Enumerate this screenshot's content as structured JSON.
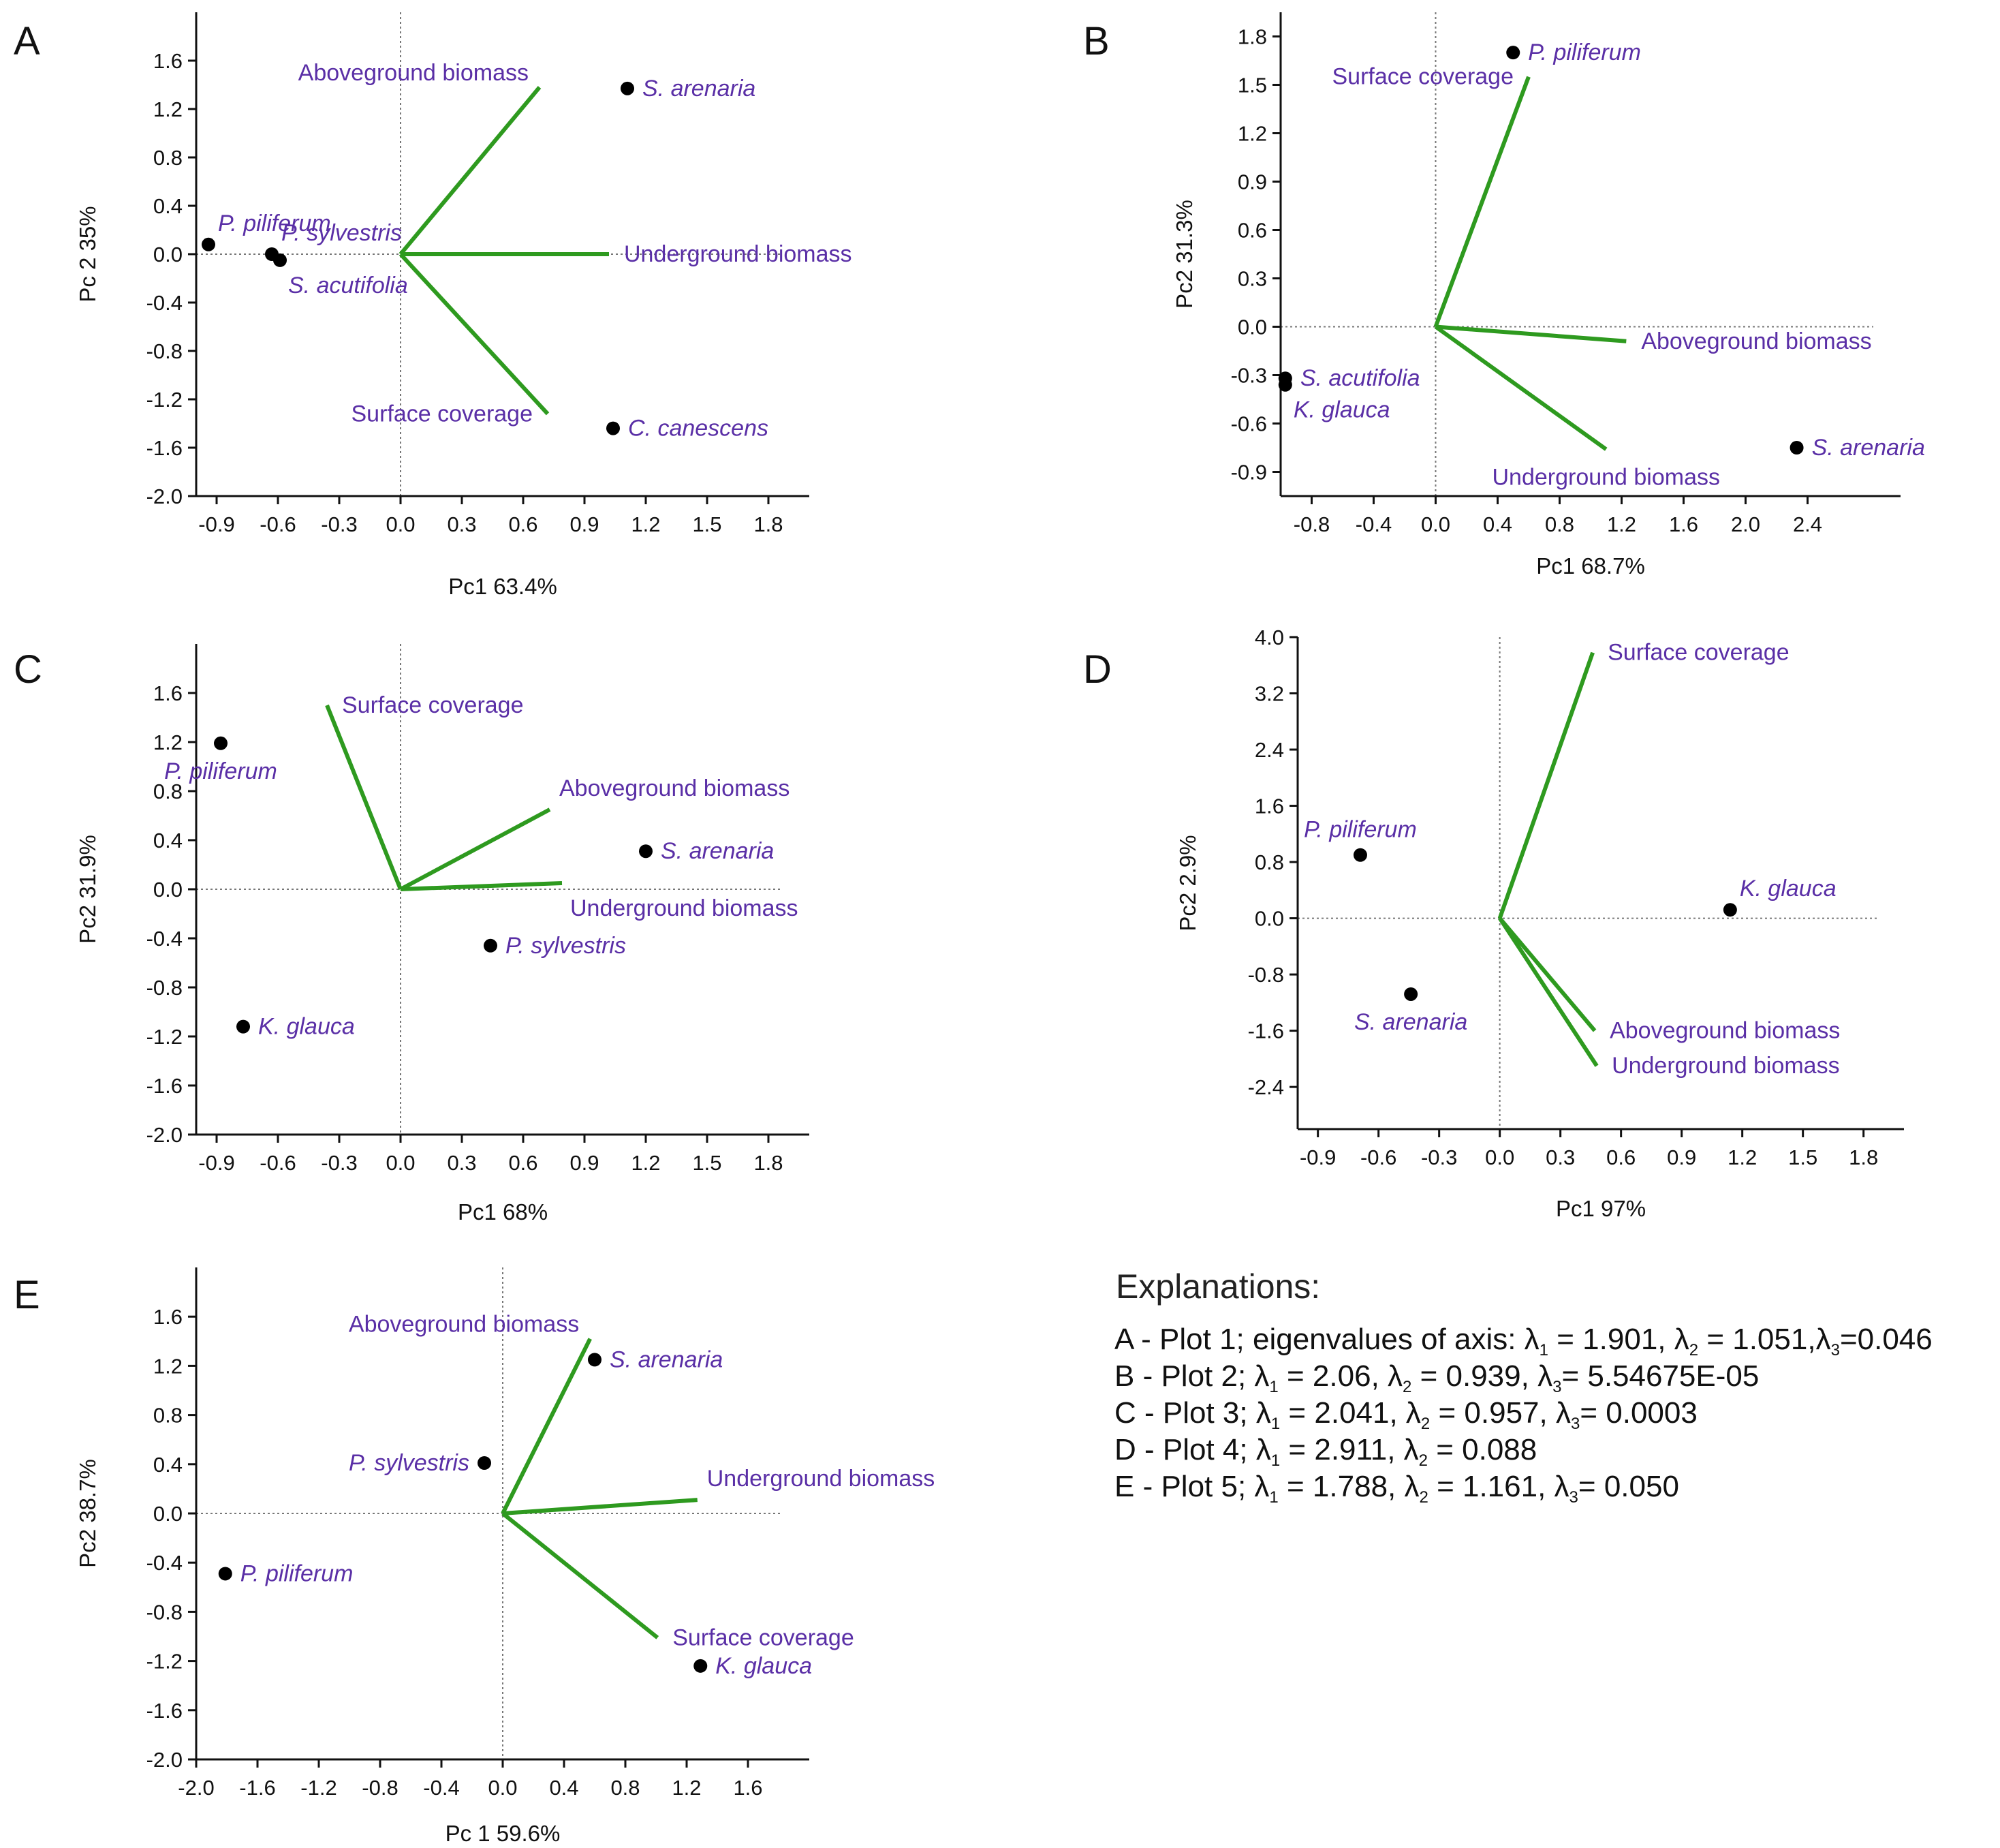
{
  "colors": {
    "vector": "#2e9a1f",
    "label": "#5a2fa6",
    "point": "#000000",
    "axis": "#111111",
    "zero_line": "#777777"
  },
  "chart_data": [
    {
      "panel": "A",
      "type": "scatter",
      "xlabel": "Pc1 63.4%",
      "ylabel": "Pc 2 35%",
      "xlim": [
        -1.0,
        2.0
      ],
      "ylim": [
        -2.0,
        2.0
      ],
      "xticks": [
        -0.9,
        -0.6,
        -0.3,
        0.0,
        0.3,
        0.6,
        0.9,
        1.2,
        1.5,
        1.8
      ],
      "xtick_labels": [
        "-0.9",
        "-0.6",
        "-0.3",
        "0.0",
        "0.3",
        "0.6",
        "0.9",
        "1.2",
        "1.5",
        "1.8"
      ],
      "yticks": [
        -2.0,
        -1.6,
        -1.2,
        -0.8,
        -0.4,
        0.0,
        0.4,
        0.8,
        1.2,
        1.6
      ],
      "ytick_labels": [
        "-2.0",
        "-1.6",
        "-1.2",
        "-0.8",
        "-0.4",
        "0.0",
        "0.4",
        "0.8",
        "1.2",
        "1.6"
      ],
      "points": [
        {
          "name": "S. arenaria",
          "x": 1.11,
          "y": 1.37,
          "label_pos": "right"
        },
        {
          "name": "P. piliferum",
          "x": -0.94,
          "y": 0.08,
          "label_pos": "upright"
        },
        {
          "name": "P. sylvestris",
          "x": -0.63,
          "y": 0.0,
          "label_pos": "upright"
        },
        {
          "name": "S. acutifolia",
          "x": -0.59,
          "y": -0.05,
          "label_pos": "downright"
        },
        {
          "name": "C. canescens",
          "x": 1.04,
          "y": -1.44,
          "label_pos": "right"
        }
      ],
      "vectors": [
        {
          "name": "Aboveground biomass",
          "x": 0.68,
          "y": 1.38,
          "label_pos": "upleft"
        },
        {
          "name": "Underground biomass",
          "x": 1.02,
          "y": 0.0,
          "label_pos": "right"
        },
        {
          "name": "Surface coverage",
          "x": 0.72,
          "y": -1.32,
          "label_pos": "left"
        }
      ]
    },
    {
      "panel": "B",
      "type": "scatter",
      "xlabel": "Pc1 68.7%",
      "ylabel": "Pc2  31.3%",
      "xlim": [
        -1.0,
        3.0
      ],
      "ylim": [
        -1.05,
        1.95
      ],
      "xticks": [
        -0.8,
        -0.4,
        0.0,
        0.4,
        0.8,
        1.2,
        1.6,
        2.0,
        2.4
      ],
      "xtick_labels": [
        "-0.8",
        "-0.4",
        "0.0",
        "0.4",
        "0.8",
        "1.2",
        "1.6",
        "2.0",
        "2.4"
      ],
      "yticks": [
        -0.9,
        -0.6,
        -0.3,
        0.0,
        0.3,
        0.6,
        0.9,
        1.2,
        1.5,
        1.8
      ],
      "ytick_labels": [
        "-0.9",
        "-0.6",
        "-0.3",
        "0.0",
        "0.3",
        "0.6",
        "0.9",
        "1.2",
        "1.5",
        "1.8"
      ],
      "points": [
        {
          "name": "P. piliferum",
          "x": 0.5,
          "y": 1.7,
          "label_pos": "right"
        },
        {
          "name": "S. acutifolia",
          "x": -0.97,
          "y": -0.32,
          "label_pos": "right"
        },
        {
          "name": "K. glauca",
          "x": -0.97,
          "y": -0.36,
          "label_pos": "downright"
        },
        {
          "name": "S. arenaria",
          "x": 2.33,
          "y": -0.75,
          "label_pos": "right"
        }
      ],
      "vectors": [
        {
          "name": "Surface coverage",
          "x": 0.6,
          "y": 1.55,
          "label_pos": "left"
        },
        {
          "name": "Aboveground biomass",
          "x": 1.23,
          "y": -0.09,
          "label_pos": "right"
        },
        {
          "name": "Underground biomass",
          "x": 1.1,
          "y": -0.76,
          "label_pos": "below"
        }
      ]
    },
    {
      "panel": "C",
      "type": "scatter",
      "xlabel": "Pc1 68%",
      "ylabel": "Pc2  31.9%",
      "xlim": [
        -1.0,
        2.0
      ],
      "ylim": [
        -2.0,
        2.0
      ],
      "xticks": [
        -0.9,
        -0.6,
        -0.3,
        0.0,
        0.3,
        0.6,
        0.9,
        1.2,
        1.5,
        1.8
      ],
      "xtick_labels": [
        "-0.9",
        "-0.6",
        "-0.3",
        "0.0",
        "0.3",
        "0.6",
        "0.9",
        "1.2",
        "1.5",
        "1.8"
      ],
      "yticks": [
        -2.0,
        -1.6,
        -1.2,
        -0.8,
        -0.4,
        0.0,
        0.4,
        0.8,
        1.2,
        1.6
      ],
      "ytick_labels": [
        "-2.0",
        "-1.6",
        "-1.2",
        "-0.8",
        "-0.4",
        "0.0",
        "0.4",
        "0.8",
        "1.2",
        "1.6"
      ],
      "points": [
        {
          "name": "P. piliferum",
          "x": -0.88,
          "y": 1.19,
          "label_pos": "below"
        },
        {
          "name": "S. arenaria",
          "x": 1.2,
          "y": 0.31,
          "label_pos": "right"
        },
        {
          "name": "P. sylvestris",
          "x": 0.44,
          "y": -0.46,
          "label_pos": "right"
        },
        {
          "name": "K. glauca",
          "x": -0.77,
          "y": -1.12,
          "label_pos": "right"
        }
      ],
      "vectors": [
        {
          "name": "Surface coverage",
          "x": -0.36,
          "y": 1.5,
          "label_pos": "right"
        },
        {
          "name": "Aboveground biomass",
          "x": 0.73,
          "y": 0.65,
          "label_pos": "upright"
        },
        {
          "name": "Underground biomass",
          "x": 0.79,
          "y": 0.05,
          "label_pos": "downright"
        }
      ]
    },
    {
      "panel": "D",
      "type": "scatter",
      "xlabel": "Pc1 97%",
      "ylabel": "Pc2 2.9%",
      "xlim": [
        -1.0,
        2.0
      ],
      "ylim": [
        -3.0,
        4.0
      ],
      "xticks": [
        -0.9,
        -0.6,
        -0.3,
        0.0,
        0.3,
        0.6,
        0.9,
        1.2,
        1.5,
        1.8
      ],
      "xtick_labels": [
        "-0.9",
        "-0.6",
        "-0.3",
        "0.0",
        "0.3",
        "0.6",
        "0.9",
        "1.2",
        "1.5",
        "1.8"
      ],
      "yticks": [
        -2.4,
        -1.6,
        -0.8,
        0.0,
        0.8,
        1.6,
        2.4,
        3.2,
        4.0
      ],
      "ytick_labels": [
        "-2.4",
        "-1.6",
        "-0.8",
        "0.0",
        "0.8",
        "1.6",
        "2.4",
        "3.2",
        "4.0"
      ],
      "points": [
        {
          "name": "P. piliferum",
          "x": -0.69,
          "y": 0.9,
          "label_pos": "above"
        },
        {
          "name": "K. glauca",
          "x": 1.14,
          "y": 0.12,
          "label_pos": "upright"
        },
        {
          "name": "S. arenaria",
          "x": -0.44,
          "y": -1.08,
          "label_pos": "below"
        }
      ],
      "vectors": [
        {
          "name": "Surface coverage",
          "x": 0.46,
          "y": 3.78,
          "label_pos": "right"
        },
        {
          "name": "Aboveground biomass",
          "x": 0.47,
          "y": -1.6,
          "label_pos": "right"
        },
        {
          "name": "Underground biomass",
          "x": 0.48,
          "y": -2.1,
          "label_pos": "right"
        }
      ]
    },
    {
      "panel": "E",
      "type": "scatter",
      "xlabel": "Pc 1 59.6%",
      "ylabel": "Pc2 38.7%",
      "xlim": [
        -2.0,
        2.0
      ],
      "ylim": [
        -2.0,
        2.0
      ],
      "xticks": [
        -2.0,
        -1.6,
        -1.2,
        -0.8,
        -0.4,
        0.0,
        0.4,
        0.8,
        1.2,
        1.6
      ],
      "xtick_labels": [
        "-2.0",
        "-1.6",
        "-1.2",
        "-0.8",
        "-0.4",
        "0.0",
        "0.4",
        "0.8",
        "1.2",
        "1.6"
      ],
      "yticks": [
        -2.0,
        -1.6,
        -1.2,
        -0.8,
        -0.4,
        0.0,
        0.4,
        0.8,
        1.2,
        1.6
      ],
      "ytick_labels": [
        "-2.0",
        "-1.6",
        "-1.2",
        "-0.8",
        "-0.4",
        "0.0",
        "0.4",
        "0.8",
        "1.2",
        "1.6"
      ],
      "points": [
        {
          "name": "S. arenaria",
          "x": 0.6,
          "y": 1.25,
          "label_pos": "right"
        },
        {
          "name": "P. sylvestris",
          "x": -0.12,
          "y": 0.41,
          "label_pos": "left"
        },
        {
          "name": "P. piliferum",
          "x": -1.81,
          "y": -0.49,
          "label_pos": "right"
        },
        {
          "name": "K. glauca",
          "x": 1.29,
          "y": -1.24,
          "label_pos": "right"
        }
      ],
      "vectors": [
        {
          "name": "Aboveground biomass",
          "x": 0.57,
          "y": 1.42,
          "label_pos": "upleft"
        },
        {
          "name": "Underground biomass",
          "x": 1.27,
          "y": 0.11,
          "label_pos": "upright"
        },
        {
          "name": "Surface coverage",
          "x": 1.01,
          "y": -1.01,
          "label_pos": "right"
        }
      ]
    }
  ],
  "explanations": {
    "title": "Explanations:",
    "lines": [
      {
        "id": "A",
        "runs": [
          {
            "t": "A - Plot 1; eigenvalues of axis: λ"
          },
          {
            "sub": "1"
          },
          {
            "t": " = 1.901, λ"
          },
          {
            "sub": "2"
          },
          {
            "t": " = 1.051,λ"
          },
          {
            "sub": "3"
          },
          {
            "t": "=0.046"
          }
        ]
      },
      {
        "id": "B",
        "runs": [
          {
            "t": "B - Plot 2; λ"
          },
          {
            "sub": "1"
          },
          {
            "t": " = 2.06, λ"
          },
          {
            "sub": "2"
          },
          {
            "t": " = 0.939, λ"
          },
          {
            "sub": "3"
          },
          {
            "t": "= 5.54675E-05"
          }
        ]
      },
      {
        "id": "C",
        "runs": [
          {
            "t": "C - Plot 3; λ"
          },
          {
            "sub": "1"
          },
          {
            "t": " = 2.041, λ"
          },
          {
            "sub": "2"
          },
          {
            "t": " = 0.957, λ"
          },
          {
            "sub": "3"
          },
          {
            "t": "= 0.0003"
          }
        ]
      },
      {
        "id": "D",
        "runs": [
          {
            "t": "D - Plot 4; λ"
          },
          {
            "sub": "1"
          },
          {
            "t": " = 2.911, λ"
          },
          {
            "sub": "2"
          },
          {
            "t": " = 0.088"
          }
        ]
      },
      {
        "id": "E",
        "runs": [
          {
            "t": "E - Plot 5; λ"
          },
          {
            "sub": "1"
          },
          {
            "t": " = 1.788, λ"
          },
          {
            "sub": "2"
          },
          {
            "t": " = 1.161, λ"
          },
          {
            "sub": "3"
          },
          {
            "t": "= 0.050"
          }
        ]
      }
    ]
  }
}
